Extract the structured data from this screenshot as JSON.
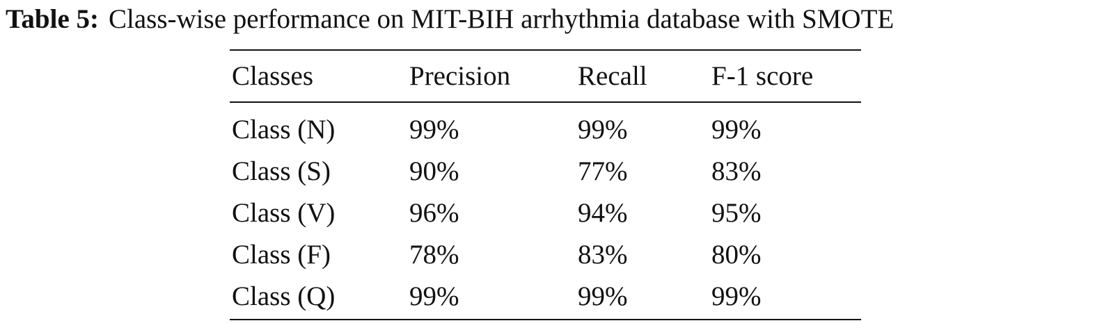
{
  "caption": {
    "label": "Table 5:",
    "text": "Class-wise performance on MIT-BIH arrhythmia database with SMOTE"
  },
  "table": {
    "header": [
      "Classes",
      "Precision",
      "Recall",
      "F-1 score"
    ],
    "rows": [
      [
        "Class (N)",
        "99%",
        "99%",
        "99%"
      ],
      [
        "Class (S)",
        "90%",
        "77%",
        "83%"
      ],
      [
        "Class (V)",
        "96%",
        "94%",
        "95%"
      ],
      [
        "Class (F)",
        "78%",
        "83%",
        "80%"
      ],
      [
        "Class (Q)",
        "99%",
        "99%",
        "99%"
      ]
    ]
  }
}
